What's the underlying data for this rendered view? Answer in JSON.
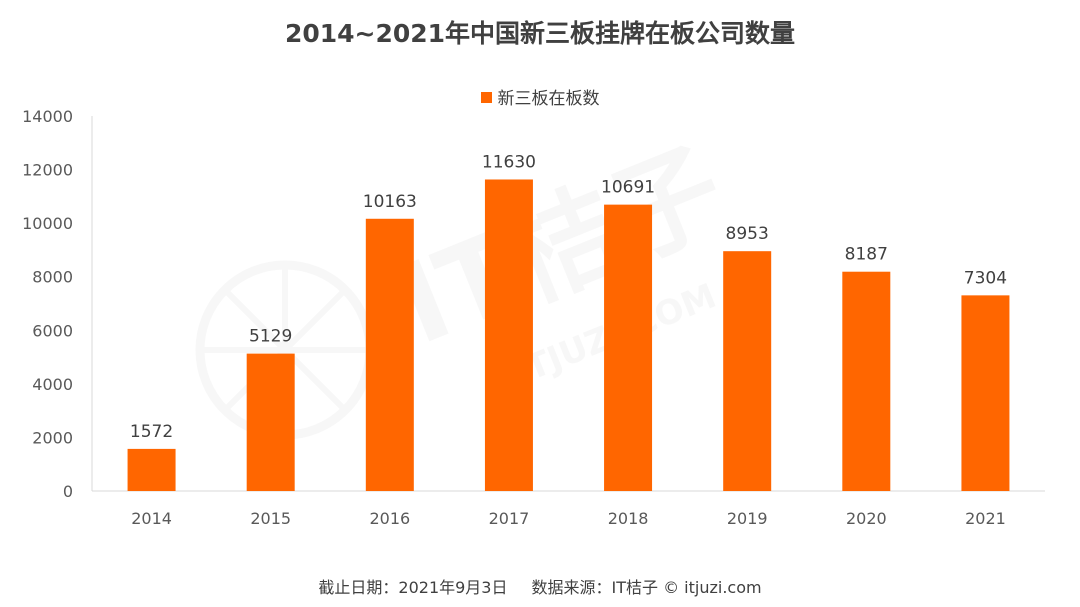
{
  "chart_data": {
    "type": "bar",
    "title": "2014~2021年中国新三板挂牌在板公司数量",
    "categories": [
      "2014",
      "2015",
      "2016",
      "2017",
      "2018",
      "2019",
      "2020",
      "2021"
    ],
    "series": [
      {
        "name": "新三板在板数",
        "values": [
          1572,
          5129,
          10163,
          11630,
          10691,
          8953,
          8187,
          7304
        ]
      }
    ],
    "ylim": [
      0,
      14000
    ],
    "yticks": [
      0,
      2000,
      4000,
      6000,
      8000,
      10000,
      12000,
      14000
    ],
    "xlabel": "",
    "ylabel": "",
    "legend_position": "top-center",
    "grid": false,
    "bar_color": "#ff6600"
  },
  "footer": {
    "date": "截止日期：2021年9月3日",
    "source": "数据来源：IT桔子 © itjuzi.com"
  },
  "watermark": {
    "brand": "IT桔子",
    "domain": "ITJUZI.COM"
  }
}
